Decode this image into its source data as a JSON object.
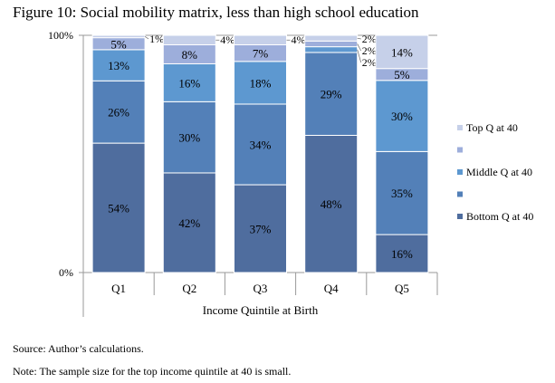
{
  "title": "Figure 10: Social mobility matrix, less than high school education",
  "source": "Source: Author’s calculations.",
  "note": "Note: The sample size for the top income quintile at 40 is small.",
  "chart_data": {
    "type": "bar",
    "stacked": "percent",
    "categories": [
      "Q1",
      "Q2",
      "Q3",
      "Q4",
      "Q5"
    ],
    "xlabel": "Income Quintile at Birth",
    "ylabel": "",
    "ylim": [
      0,
      100
    ],
    "yticks": [
      "0%",
      "100%"
    ],
    "legend_position": "right",
    "series": [
      {
        "name": "Bottom Q at 40",
        "color": "#4f6d9e",
        "values": [
          54,
          42,
          37,
          48,
          16
        ]
      },
      {
        "name": "",
        "color": "#5380b8",
        "values": [
          26,
          30,
          34,
          29,
          35
        ]
      },
      {
        "name": "Middle Q at 40",
        "color": "#5d98d0",
        "values": [
          13,
          16,
          18,
          2,
          30
        ]
      },
      {
        "name": "",
        "color": "#9daedb",
        "values": [
          5,
          8,
          7,
          2,
          5
        ]
      },
      {
        "name": "Top Q at 40",
        "color": "#c6d0e9",
        "values": [
          1,
          4,
          4,
          2,
          14
        ]
      }
    ]
  }
}
